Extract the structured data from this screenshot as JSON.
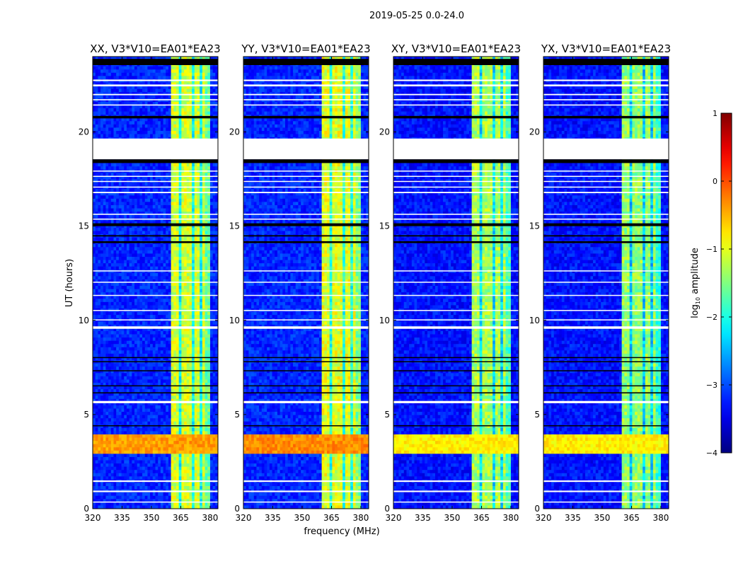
{
  "chart_data": {
    "type": "heatmap",
    "suptitle": "2019-05-25 0.0-24.0",
    "xlabel": "frequency (MHz)",
    "ylabel": "UT (hours)",
    "xlim": [
      320,
      384
    ],
    "ylim": [
      0,
      24
    ],
    "xticks": [
      320,
      335,
      350,
      365,
      380
    ],
    "yticks": [
      0,
      5,
      10,
      15,
      20
    ],
    "colormap": "jet",
    "colorbar": {
      "label_main": "log",
      "label_sub": "10",
      "label_rest": " amplitude",
      "range": [
        -4,
        1
      ],
      "ticks": [
        1,
        0,
        -1,
        -2,
        -3,
        -4
      ],
      "tick_labels": [
        "1",
        "0",
        "−1",
        "−2",
        "−3",
        "−4"
      ]
    },
    "panels": [
      {
        "title": "XX, V3*V10=EA01*EA23",
        "background_level": -3.2,
        "band_level": -1.1,
        "burst_level": -0.4
      },
      {
        "title": "YY, V3*V10=EA01*EA23",
        "background_level": -3.2,
        "band_level": -1.0,
        "burst_level": -0.3
      },
      {
        "title": "XY, V3*V10=EA01*EA23",
        "background_level": -3.3,
        "band_level": -1.3,
        "burst_level": -0.8
      },
      {
        "title": "YX, V3*V10=EA01*EA23",
        "background_level": -3.3,
        "band_level": -1.4,
        "burst_level": -0.8
      }
    ],
    "rfi_band_mhz": [
      360.5,
      379.5
    ],
    "rfi_band_gaps_mhz": [
      365.2,
      371.0,
      375.3
    ],
    "burst_hours": [
      2.95,
      3.9
    ],
    "flagged_hours": [
      [
        18.55,
        19.65
      ],
      [
        22.7,
        22.78
      ],
      [
        22.42,
        22.52
      ],
      [
        21.95,
        22.02
      ],
      [
        21.68,
        21.74
      ],
      [
        21.4,
        21.46
      ],
      [
        17.9,
        17.95
      ],
      [
        17.62,
        17.67
      ],
      [
        17.35,
        17.4
      ],
      [
        17.05,
        17.1
      ],
      [
        16.75,
        16.82
      ],
      [
        15.6,
        15.66
      ],
      [
        15.35,
        15.4
      ],
      [
        12.6,
        12.65
      ],
      [
        12.0,
        12.05
      ],
      [
        11.3,
        11.35
      ],
      [
        10.5,
        10.55
      ],
      [
        10.0,
        10.05
      ],
      [
        9.55,
        9.68
      ],
      [
        5.6,
        5.72
      ],
      [
        1.42,
        1.5
      ],
      [
        0.88,
        0.96
      ],
      [
        0.33,
        0.38
      ]
    ],
    "blank_hours": [
      [
        23.55,
        23.88
      ],
      [
        20.72,
        20.85
      ],
      [
        18.35,
        18.55
      ],
      [
        15.0,
        15.15
      ],
      [
        14.45,
        14.52
      ],
      [
        14.1,
        14.2
      ],
      [
        8.0,
        8.05
      ],
      [
        7.78,
        7.83
      ],
      [
        7.3,
        7.35
      ],
      [
        6.5,
        6.55
      ],
      [
        6.12,
        6.18
      ],
      [
        4.4,
        4.43
      ]
    ]
  }
}
